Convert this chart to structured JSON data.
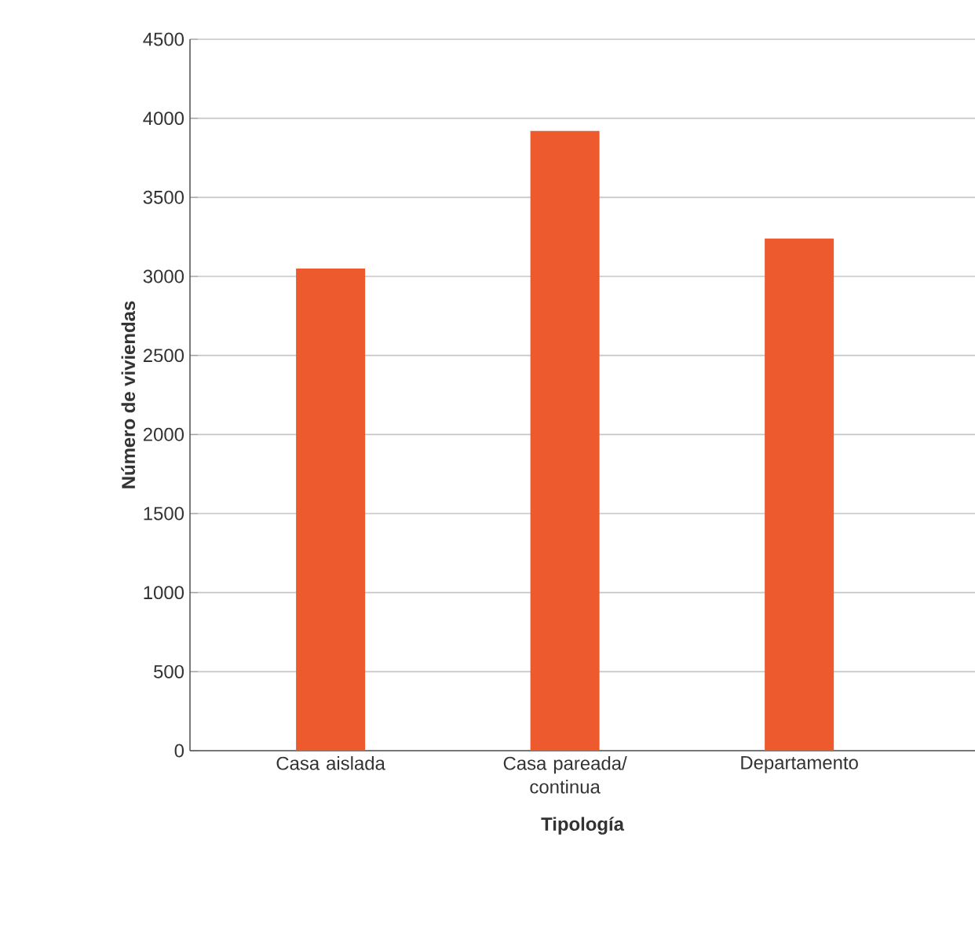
{
  "chart_data": {
    "type": "bar",
    "xlabel": "Tipología",
    "ylabel": "Número de viviendas",
    "categories": [
      "Casa aislada",
      "Casa pareada/ continua",
      "Departamento"
    ],
    "values": [
      3050,
      3920,
      3240
    ],
    "color": "#ec5a2e",
    "ylim": [
      0,
      4500
    ],
    "yticks": [
      0,
      500,
      1000,
      1500,
      2000,
      2500,
      3000,
      3500,
      4000,
      4500
    ],
    "grid": "y"
  }
}
